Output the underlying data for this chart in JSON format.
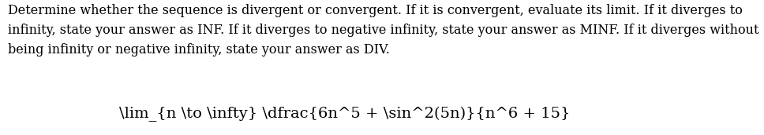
{
  "paragraph": "Determine whether the sequence is divergent or convergent. If it is convergent, evaluate its limit. If it diverges to infinity, state your answer as INF. If it diverges to negative infinity, state your answer as MINF. If it diverges without being infinity or negative infinity, state your answer as DIV.",
  "math_expression": "\\lim_{n \\to \\infty} \\dfrac{6n^5 + \\sin^2(5n)}{n^6 + 15}",
  "bg_color": "#ffffff",
  "text_color": "#000000",
  "font_size_paragraph": 11.5,
  "font_size_math": 14,
  "fig_width": 9.68,
  "fig_height": 1.72
}
